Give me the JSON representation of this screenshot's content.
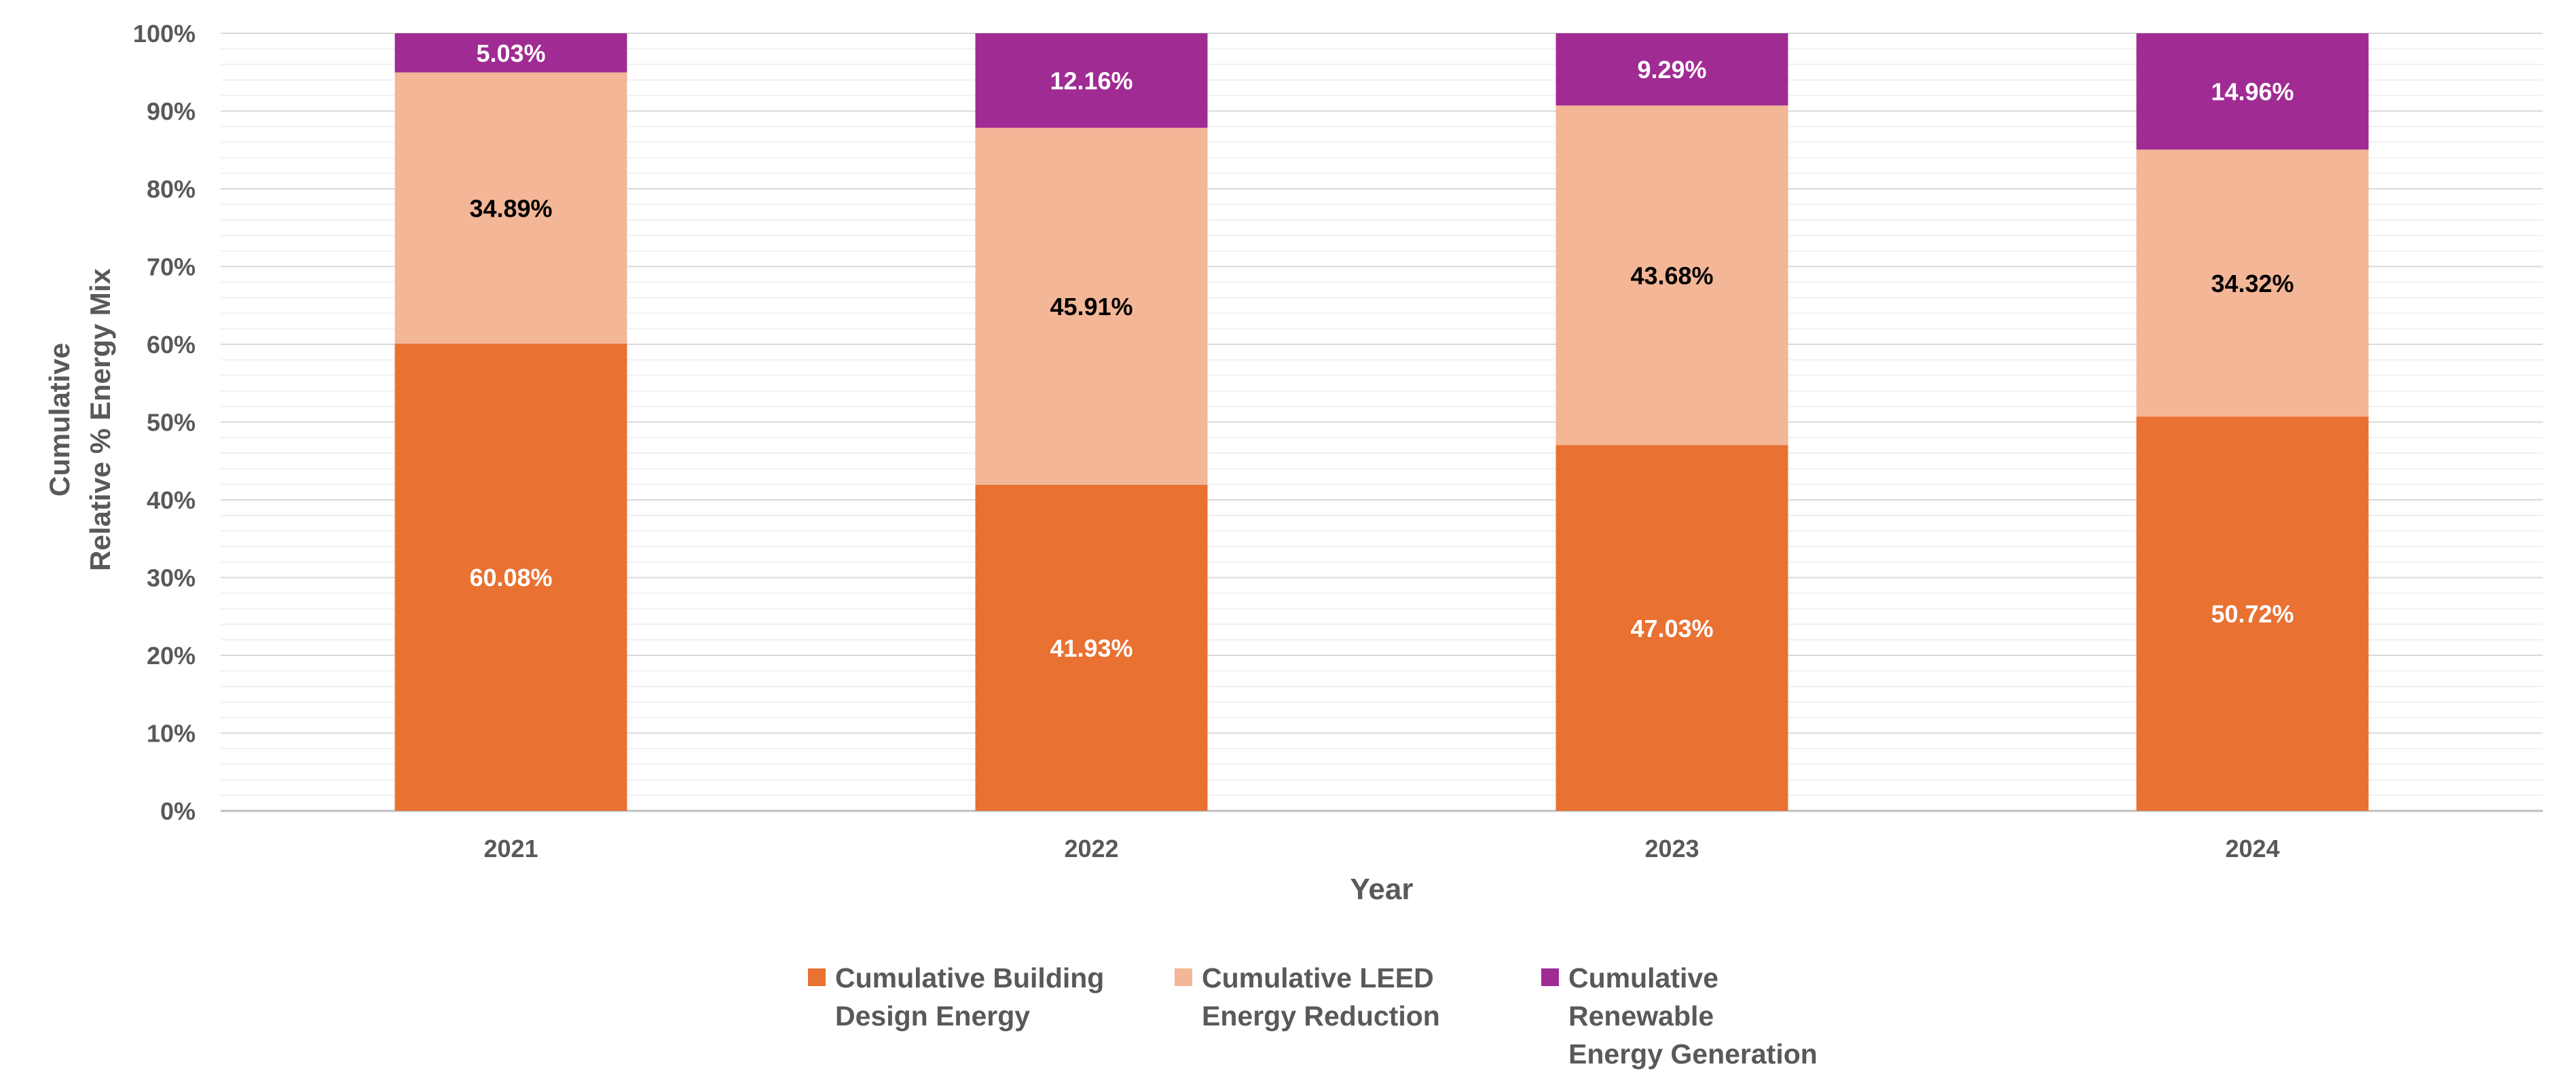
{
  "chart_data": {
    "type": "bar",
    "stacked": true,
    "percent_stacked": true,
    "categories": [
      "2021",
      "2022",
      "2023",
      "2024"
    ],
    "series": [
      {
        "name": "Cumulative Building Design Energy",
        "values": [
          60.08,
          41.93,
          47.03,
          50.72
        ],
        "labels": [
          "60.08%",
          "41.93%",
          "47.03%",
          "50.72%"
        ],
        "color": "#E97132",
        "label_color": "#FFFFFF"
      },
      {
        "name": "Cumulative LEED Energy Reduction",
        "values": [
          34.89,
          45.91,
          43.68,
          34.32
        ],
        "labels": [
          "34.89%",
          "45.91%",
          "43.68%",
          "34.32%"
        ],
        "color": "#F3B697",
        "label_color": "#000000"
      },
      {
        "name": "Cumulative Renewable Energy Generation",
        "values": [
          5.03,
          12.16,
          9.29,
          14.96
        ],
        "labels": [
          "5.03%",
          "12.16%",
          "9.29%",
          "14.96%"
        ],
        "color": "#A02B93",
        "label_color": "#FFFFFF"
      }
    ],
    "y_ticks": [
      "0%",
      "10%",
      "20%",
      "30%",
      "40%",
      "50%",
      "60%",
      "70%",
      "80%",
      "90%",
      "100%"
    ],
    "ylim": [
      0,
      100
    ],
    "xlabel": "Year",
    "ylabel_lines": [
      "Cumulative",
      "Relative % Energy Mix"
    ],
    "grid": "major and minor horizontal",
    "legend_position": "bottom"
  },
  "legend": [
    {
      "line1": "Cumulative Building",
      "line2": "Design Energy",
      "color": "#E97132"
    },
    {
      "line1": "Cumulative LEED",
      "line2": "Energy Reduction",
      "color": "#F3B697"
    },
    {
      "line1": "Cumulative Renewable",
      "line2": "Energy Generation",
      "color": "#A02B93"
    }
  ]
}
